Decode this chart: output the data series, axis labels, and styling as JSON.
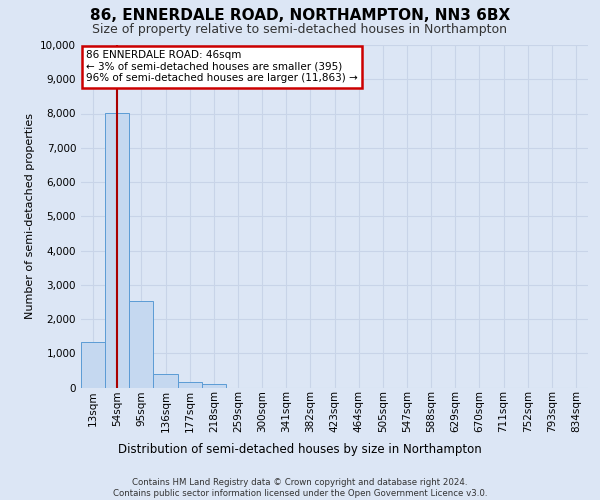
{
  "title": "86, ENNERDALE ROAD, NORTHAMPTON, NN3 6BX",
  "subtitle": "Size of property relative to semi-detached houses in Northampton",
  "xlabel_bottom": "Distribution of semi-detached houses by size in Northampton",
  "ylabel": "Number of semi-detached properties",
  "footer_line1": "Contains HM Land Registry data © Crown copyright and database right 2024.",
  "footer_line2": "Contains public sector information licensed under the Open Government Licence v3.0.",
  "bin_labels": [
    "13sqm",
    "54sqm",
    "95sqm",
    "136sqm",
    "177sqm",
    "218sqm",
    "259sqm",
    "300sqm",
    "341sqm",
    "382sqm",
    "423sqm",
    "464sqm",
    "505sqm",
    "547sqm",
    "588sqm",
    "629sqm",
    "670sqm",
    "711sqm",
    "752sqm",
    "793sqm",
    "834sqm"
  ],
  "bar_values": [
    1320,
    8020,
    2520,
    380,
    150,
    95,
    0,
    0,
    0,
    0,
    0,
    0,
    0,
    0,
    0,
    0,
    0,
    0,
    0,
    0,
    0
  ],
  "bar_color": "#c5d8f0",
  "bar_edge_color": "#5b9bd5",
  "annotation_line1": "86 ENNERDALE ROAD: 46sqm",
  "annotation_line2": "← 3% of semi-detached houses are smaller (395)",
  "annotation_line3": "96% of semi-detached houses are larger (11,863) →",
  "annotation_box_color": "#ffffff",
  "annotation_border_color": "#cc0000",
  "vline_color": "#aa0000",
  "vline_x": 1.0,
  "ylim": [
    0,
    10000
  ],
  "yticks": [
    0,
    1000,
    2000,
    3000,
    4000,
    5000,
    6000,
    7000,
    8000,
    9000,
    10000
  ],
  "grid_color": "#c8d4e8",
  "background_color": "#dce6f5",
  "axes_background": "#dce6f5",
  "title_fontsize": 11,
  "subtitle_fontsize": 9,
  "ylabel_fontsize": 8,
  "tick_fontsize": 7.5,
  "annotation_fontsize": 7.5
}
